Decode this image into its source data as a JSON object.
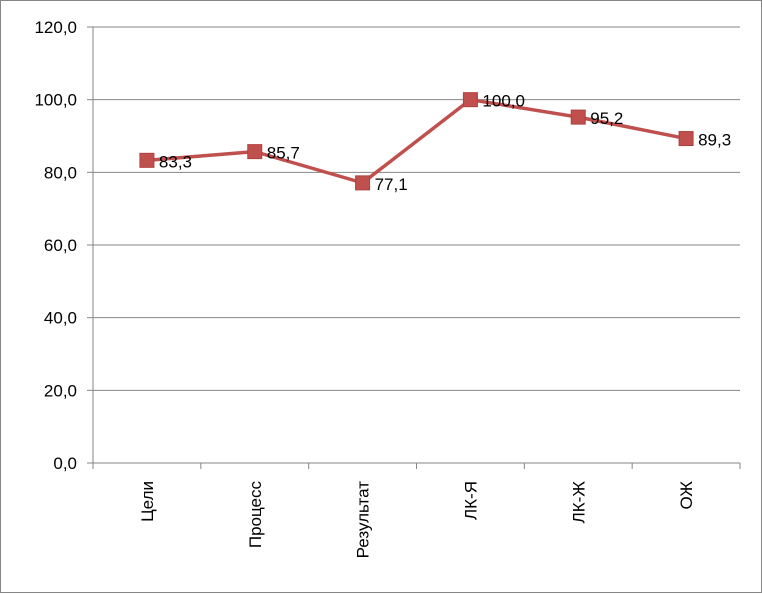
{
  "chart_data": {
    "type": "line",
    "categories": [
      "Цели",
      "Процесс",
      "Результат",
      "ЛК-Я",
      "ЛК-Ж",
      "ОЖ"
    ],
    "values": [
      83.3,
      85.7,
      77.1,
      100.0,
      95.2,
      89.3
    ],
    "value_labels": [
      "83,3",
      "85,7",
      "77,1",
      "100,0",
      "95,2",
      "89,3"
    ],
    "y_ticks": [
      "0,0",
      "20,0",
      "40,0",
      "60,0",
      "80,0",
      "100,0",
      "120,0"
    ],
    "ylim": [
      0,
      120
    ],
    "y_step": 20,
    "grid": true,
    "legend": "none",
    "series_color": "#C0504D",
    "marker": "square"
  }
}
